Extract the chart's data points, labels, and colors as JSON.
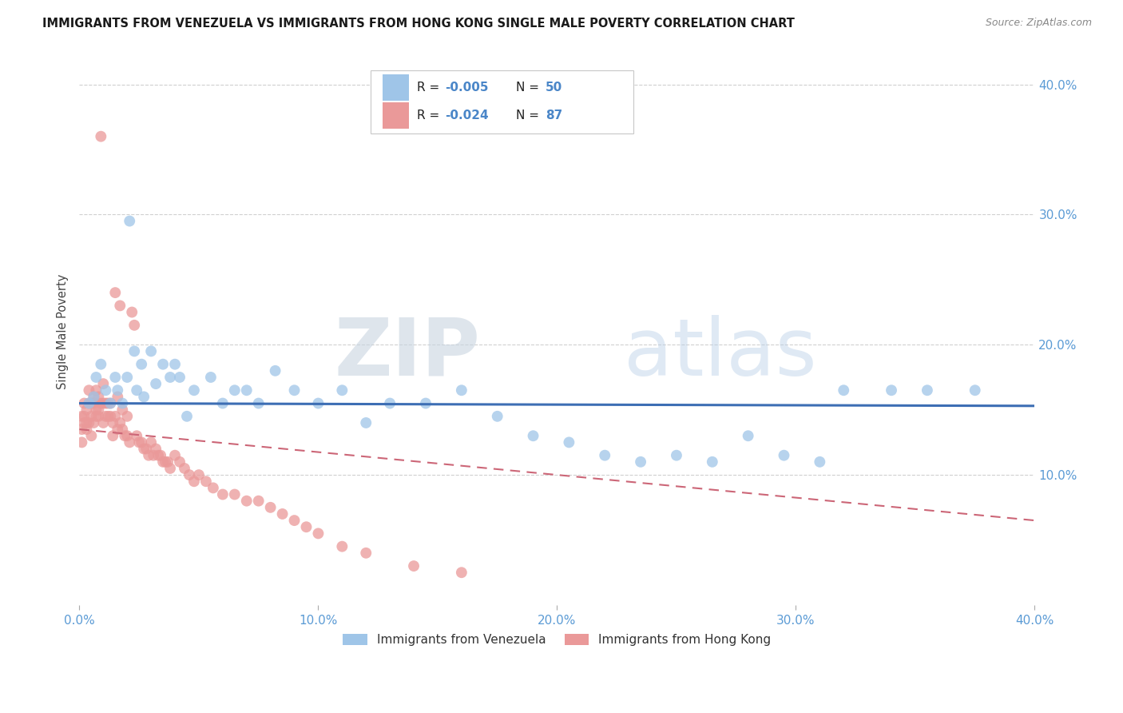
{
  "title": "IMMIGRANTS FROM VENEZUELA VS IMMIGRANTS FROM HONG KONG SINGLE MALE POVERTY CORRELATION CHART",
  "source": "Source: ZipAtlas.com",
  "ylabel": "Single Male Poverty",
  "xlim": [
    0.0,
    0.4
  ],
  "ylim": [
    0.0,
    0.42
  ],
  "yticks": [
    0.1,
    0.2,
    0.3,
    0.4
  ],
  "xticks": [
    0.0,
    0.1,
    0.2,
    0.3,
    0.4
  ],
  "legend_label1": "Immigrants from Venezuela",
  "legend_label2": "Immigrants from Hong Kong",
  "color_venezuela": "#9fc5e8",
  "color_hongkong": "#ea9999",
  "color_trend_venezuela": "#3d6eb4",
  "color_trend_hongkong": "#cc6677",
  "color_text_blue": "#4a86c8",
  "color_tick_label": "#5b9bd5",
  "watermark_zip": "ZIP",
  "watermark_atlas": "atlas",
  "background_color": "#ffffff",
  "venezuela_x": [
    0.004,
    0.006,
    0.007,
    0.009,
    0.011,
    0.013,
    0.015,
    0.016,
    0.018,
    0.02,
    0.021,
    0.023,
    0.024,
    0.026,
    0.027,
    0.03,
    0.032,
    0.035,
    0.038,
    0.04,
    0.042,
    0.045,
    0.048,
    0.055,
    0.06,
    0.065,
    0.07,
    0.075,
    0.082,
    0.09,
    0.1,
    0.11,
    0.12,
    0.13,
    0.145,
    0.16,
    0.175,
    0.19,
    0.205,
    0.22,
    0.235,
    0.25,
    0.265,
    0.28,
    0.295,
    0.31,
    0.32,
    0.34,
    0.355,
    0.375
  ],
  "venezuela_y": [
    0.155,
    0.16,
    0.175,
    0.185,
    0.165,
    0.155,
    0.175,
    0.165,
    0.155,
    0.175,
    0.295,
    0.195,
    0.165,
    0.185,
    0.16,
    0.195,
    0.17,
    0.185,
    0.175,
    0.185,
    0.175,
    0.145,
    0.165,
    0.175,
    0.155,
    0.165,
    0.165,
    0.155,
    0.18,
    0.165,
    0.155,
    0.165,
    0.14,
    0.155,
    0.155,
    0.165,
    0.145,
    0.13,
    0.125,
    0.115,
    0.11,
    0.115,
    0.11,
    0.13,
    0.115,
    0.11,
    0.165,
    0.165,
    0.165,
    0.165
  ],
  "hongkong_x": [
    0.001,
    0.001,
    0.001,
    0.002,
    0.002,
    0.002,
    0.003,
    0.003,
    0.003,
    0.004,
    0.004,
    0.004,
    0.005,
    0.005,
    0.005,
    0.006,
    0.006,
    0.006,
    0.007,
    0.007,
    0.007,
    0.008,
    0.008,
    0.008,
    0.009,
    0.009,
    0.01,
    0.01,
    0.01,
    0.011,
    0.011,
    0.012,
    0.012,
    0.013,
    0.013,
    0.014,
    0.014,
    0.015,
    0.015,
    0.016,
    0.016,
    0.017,
    0.017,
    0.018,
    0.018,
    0.019,
    0.02,
    0.02,
    0.021,
    0.022,
    0.023,
    0.024,
    0.025,
    0.026,
    0.027,
    0.028,
    0.029,
    0.03,
    0.031,
    0.032,
    0.033,
    0.034,
    0.035,
    0.036,
    0.037,
    0.038,
    0.04,
    0.042,
    0.044,
    0.046,
    0.048,
    0.05,
    0.053,
    0.056,
    0.06,
    0.065,
    0.07,
    0.075,
    0.08,
    0.085,
    0.09,
    0.095,
    0.1,
    0.11,
    0.12,
    0.14,
    0.16
  ],
  "hongkong_y": [
    0.125,
    0.135,
    0.145,
    0.14,
    0.145,
    0.155,
    0.135,
    0.14,
    0.15,
    0.14,
    0.155,
    0.165,
    0.145,
    0.155,
    0.13,
    0.155,
    0.16,
    0.14,
    0.15,
    0.145,
    0.165,
    0.15,
    0.16,
    0.145,
    0.36,
    0.155,
    0.14,
    0.155,
    0.17,
    0.145,
    0.155,
    0.155,
    0.145,
    0.155,
    0.145,
    0.14,
    0.13,
    0.24,
    0.145,
    0.16,
    0.135,
    0.23,
    0.14,
    0.15,
    0.135,
    0.13,
    0.145,
    0.13,
    0.125,
    0.225,
    0.215,
    0.13,
    0.125,
    0.125,
    0.12,
    0.12,
    0.115,
    0.125,
    0.115,
    0.12,
    0.115,
    0.115,
    0.11,
    0.11,
    0.11,
    0.105,
    0.115,
    0.11,
    0.105,
    0.1,
    0.095,
    0.1,
    0.095,
    0.09,
    0.085,
    0.085,
    0.08,
    0.08,
    0.075,
    0.07,
    0.065,
    0.06,
    0.055,
    0.045,
    0.04,
    0.03,
    0.025
  ],
  "ven_trend_x": [
    0.0,
    0.4
  ],
  "ven_trend_y": [
    0.155,
    0.153
  ],
  "hk_trend_x": [
    0.0,
    0.4
  ],
  "hk_trend_y": [
    0.135,
    0.065
  ]
}
